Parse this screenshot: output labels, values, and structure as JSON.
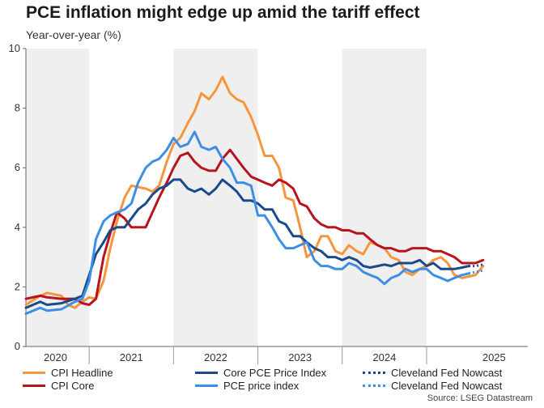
{
  "chart_data": {
    "type": "line",
    "title": "PCE inflation might edge up amid the tariff effect",
    "ylabel": "Year-over-year (%)",
    "source": "Source: LSEG Datastream",
    "ylim": [
      0,
      10
    ],
    "yticks": [
      "0",
      "2",
      "4",
      "6",
      "8",
      "10"
    ],
    "x_start": 2019.75,
    "x_end": 2025.7,
    "xtick_labels": [
      {
        "label": "2020",
        "center": 2020.1
      },
      {
        "label": "2021",
        "center": 2021.0
      },
      {
        "label": "2022",
        "center": 2022.0
      },
      {
        "label": "2023",
        "center": 2023.0
      },
      {
        "label": "2024",
        "center": 2024.0
      },
      {
        "label": "2025",
        "center": 2025.3
      }
    ],
    "year_boundaries": [
      2020.5,
      2021.5,
      2022.5,
      2023.5,
      2024.5
    ],
    "shaded_years": [
      [
        2019.75,
        2020.5
      ],
      [
        2021.5,
        2022.5
      ],
      [
        2023.5,
        2024.5
      ]
    ],
    "series": [
      {
        "name": "CPI Headline",
        "color": "#f5963c",
        "style": "solid",
        "values": [
          [
            2019.75,
            1.4
          ],
          [
            2019.92,
            1.7
          ],
          [
            2020.0,
            1.8
          ],
          [
            2020.17,
            1.7
          ],
          [
            2020.25,
            1.4
          ],
          [
            2020.33,
            1.3
          ],
          [
            2020.42,
            1.5
          ],
          [
            2020.5,
            1.65
          ],
          [
            2020.58,
            1.6
          ],
          [
            2020.67,
            2.2
          ],
          [
            2020.75,
            3.3
          ],
          [
            2020.83,
            4.2
          ],
          [
            2020.92,
            5.0
          ],
          [
            2021.0,
            5.4
          ],
          [
            2021.08,
            5.35
          ],
          [
            2021.17,
            5.3
          ],
          [
            2021.25,
            5.2
          ],
          [
            2021.33,
            5.4
          ],
          [
            2021.42,
            6.2
          ],
          [
            2021.5,
            6.8
          ],
          [
            2021.58,
            7.0
          ],
          [
            2021.67,
            7.5
          ],
          [
            2021.75,
            7.9
          ],
          [
            2021.83,
            8.5
          ],
          [
            2021.92,
            8.3
          ],
          [
            2022.0,
            8.6
          ],
          [
            2022.08,
            9.05
          ],
          [
            2022.17,
            8.5
          ],
          [
            2022.25,
            8.3
          ],
          [
            2022.33,
            8.2
          ],
          [
            2022.42,
            7.7
          ],
          [
            2022.5,
            7.1
          ],
          [
            2022.58,
            6.4
          ],
          [
            2022.67,
            6.4
          ],
          [
            2022.75,
            6.0
          ],
          [
            2022.83,
            5.0
          ],
          [
            2022.92,
            4.9
          ],
          [
            2023.0,
            4.0
          ],
          [
            2023.08,
            3.0
          ],
          [
            2023.17,
            3.2
          ],
          [
            2023.25,
            3.7
          ],
          [
            2023.33,
            3.7
          ],
          [
            2023.42,
            3.2
          ],
          [
            2023.5,
            3.1
          ],
          [
            2023.58,
            3.4
          ],
          [
            2023.67,
            3.2
          ],
          [
            2023.75,
            3.1
          ],
          [
            2023.83,
            3.5
          ],
          [
            2023.92,
            3.4
          ],
          [
            2024.0,
            3.3
          ],
          [
            2024.08,
            3.0
          ],
          [
            2024.17,
            2.9
          ],
          [
            2024.25,
            2.5
          ],
          [
            2024.33,
            2.4
          ],
          [
            2024.42,
            2.6
          ],
          [
            2024.5,
            2.7
          ],
          [
            2024.58,
            2.9
          ],
          [
            2024.67,
            3.0
          ],
          [
            2024.75,
            2.8
          ],
          [
            2024.83,
            2.4
          ],
          [
            2024.92,
            2.3
          ],
          [
            2025.0,
            2.35
          ],
          [
            2025.08,
            2.4
          ],
          [
            2025.17,
            2.7
          ]
        ]
      },
      {
        "name": "CPI Core",
        "color": "#b8141e",
        "style": "solid",
        "values": [
          [
            2019.75,
            1.6
          ],
          [
            2019.92,
            1.7
          ],
          [
            2020.0,
            1.65
          ],
          [
            2020.17,
            1.6
          ],
          [
            2020.33,
            1.6
          ],
          [
            2020.42,
            1.45
          ],
          [
            2020.5,
            1.4
          ],
          [
            2020.58,
            1.6
          ],
          [
            2020.67,
            3.0
          ],
          [
            2020.75,
            3.8
          ],
          [
            2020.83,
            4.5
          ],
          [
            2020.92,
            4.3
          ],
          [
            2021.0,
            4.0
          ],
          [
            2021.08,
            4.0
          ],
          [
            2021.17,
            4.0
          ],
          [
            2021.25,
            4.5
          ],
          [
            2021.33,
            5.0
          ],
          [
            2021.42,
            5.5
          ],
          [
            2021.5,
            6.0
          ],
          [
            2021.58,
            6.4
          ],
          [
            2021.67,
            6.5
          ],
          [
            2021.75,
            6.2
          ],
          [
            2021.83,
            6.0
          ],
          [
            2021.92,
            5.9
          ],
          [
            2022.0,
            5.9
          ],
          [
            2022.08,
            6.3
          ],
          [
            2022.17,
            6.6
          ],
          [
            2022.25,
            6.3
          ],
          [
            2022.33,
            6.0
          ],
          [
            2022.42,
            5.7
          ],
          [
            2022.5,
            5.6
          ],
          [
            2022.58,
            5.5
          ],
          [
            2022.67,
            5.4
          ],
          [
            2022.75,
            5.6
          ],
          [
            2022.83,
            5.5
          ],
          [
            2022.92,
            5.3
          ],
          [
            2023.0,
            4.8
          ],
          [
            2023.08,
            4.7
          ],
          [
            2023.17,
            4.3
          ],
          [
            2023.25,
            4.1
          ],
          [
            2023.33,
            4.0
          ],
          [
            2023.42,
            4.0
          ],
          [
            2023.5,
            3.9
          ],
          [
            2023.58,
            3.9
          ],
          [
            2023.67,
            3.8
          ],
          [
            2023.75,
            3.8
          ],
          [
            2023.83,
            3.6
          ],
          [
            2023.92,
            3.4
          ],
          [
            2024.0,
            3.3
          ],
          [
            2024.08,
            3.3
          ],
          [
            2024.17,
            3.2
          ],
          [
            2024.25,
            3.2
          ],
          [
            2024.33,
            3.3
          ],
          [
            2024.42,
            3.3
          ],
          [
            2024.5,
            3.3
          ],
          [
            2024.58,
            3.2
          ],
          [
            2024.67,
            3.2
          ],
          [
            2024.75,
            3.1
          ],
          [
            2024.83,
            3.0
          ],
          [
            2024.92,
            2.8
          ],
          [
            2025.0,
            2.8
          ],
          [
            2025.08,
            2.8
          ],
          [
            2025.17,
            2.9
          ]
        ]
      },
      {
        "name": "Core PCE Price Index",
        "color": "#1a4a8c",
        "style": "solid",
        "values": [
          [
            2019.75,
            1.3
          ],
          [
            2019.92,
            1.5
          ],
          [
            2020.0,
            1.4
          ],
          [
            2020.17,
            1.45
          ],
          [
            2020.33,
            1.6
          ],
          [
            2020.42,
            1.7
          ],
          [
            2020.5,
            2.4
          ],
          [
            2020.58,
            3.1
          ],
          [
            2020.67,
            3.5
          ],
          [
            2020.75,
            3.9
          ],
          [
            2020.83,
            4.0
          ],
          [
            2020.92,
            4.0
          ],
          [
            2021.0,
            4.3
          ],
          [
            2021.08,
            4.6
          ],
          [
            2021.17,
            4.8
          ],
          [
            2021.25,
            5.1
          ],
          [
            2021.33,
            5.3
          ],
          [
            2021.42,
            5.4
          ],
          [
            2021.5,
            5.6
          ],
          [
            2021.58,
            5.6
          ],
          [
            2021.67,
            5.3
          ],
          [
            2021.75,
            5.2
          ],
          [
            2021.83,
            5.3
          ],
          [
            2021.92,
            5.1
          ],
          [
            2022.0,
            5.3
          ],
          [
            2022.08,
            5.6
          ],
          [
            2022.17,
            5.4
          ],
          [
            2022.25,
            5.2
          ],
          [
            2022.33,
            4.9
          ],
          [
            2022.42,
            4.9
          ],
          [
            2022.5,
            4.8
          ],
          [
            2022.58,
            4.6
          ],
          [
            2022.67,
            4.6
          ],
          [
            2022.75,
            4.2
          ],
          [
            2022.83,
            4.1
          ],
          [
            2022.92,
            3.7
          ],
          [
            2023.0,
            3.7
          ],
          [
            2023.08,
            3.5
          ],
          [
            2023.17,
            3.3
          ],
          [
            2023.25,
            3.2
          ],
          [
            2023.33,
            3.0
          ],
          [
            2023.42,
            3.0
          ],
          [
            2023.5,
            2.9
          ],
          [
            2023.58,
            3.0
          ],
          [
            2023.67,
            2.9
          ],
          [
            2023.75,
            2.7
          ],
          [
            2023.83,
            2.65
          ],
          [
            2023.92,
            2.7
          ],
          [
            2024.0,
            2.75
          ],
          [
            2024.08,
            2.7
          ],
          [
            2024.17,
            2.8
          ],
          [
            2024.25,
            2.8
          ],
          [
            2024.33,
            2.8
          ],
          [
            2024.42,
            2.9
          ],
          [
            2024.5,
            2.7
          ],
          [
            2024.58,
            2.8
          ],
          [
            2024.67,
            2.6
          ],
          [
            2024.75,
            2.6
          ],
          [
            2024.83,
            2.6
          ],
          [
            2024.92,
            2.65
          ],
          [
            2025.0,
            2.7
          ]
        ]
      },
      {
        "name": "PCE price index",
        "color": "#3d8ee6",
        "style": "solid",
        "values": [
          [
            2019.75,
            1.1
          ],
          [
            2019.92,
            1.3
          ],
          [
            2020.0,
            1.2
          ],
          [
            2020.17,
            1.25
          ],
          [
            2020.33,
            1.5
          ],
          [
            2020.42,
            1.6
          ],
          [
            2020.5,
            2.2
          ],
          [
            2020.58,
            3.6
          ],
          [
            2020.67,
            4.2
          ],
          [
            2020.75,
            4.4
          ],
          [
            2020.83,
            4.5
          ],
          [
            2020.92,
            4.6
          ],
          [
            2021.0,
            4.8
          ],
          [
            2021.08,
            5.5
          ],
          [
            2021.17,
            6.0
          ],
          [
            2021.25,
            6.2
          ],
          [
            2021.33,
            6.3
          ],
          [
            2021.42,
            6.6
          ],
          [
            2021.5,
            7.0
          ],
          [
            2021.58,
            6.7
          ],
          [
            2021.67,
            6.8
          ],
          [
            2021.75,
            7.2
          ],
          [
            2021.83,
            6.7
          ],
          [
            2021.92,
            6.6
          ],
          [
            2022.0,
            6.7
          ],
          [
            2022.08,
            6.3
          ],
          [
            2022.17,
            6.0
          ],
          [
            2022.25,
            5.5
          ],
          [
            2022.33,
            5.5
          ],
          [
            2022.42,
            5.4
          ],
          [
            2022.5,
            4.4
          ],
          [
            2022.58,
            4.4
          ],
          [
            2022.67,
            4.0
          ],
          [
            2022.75,
            3.6
          ],
          [
            2022.83,
            3.3
          ],
          [
            2022.92,
            3.3
          ],
          [
            2023.0,
            3.4
          ],
          [
            2023.08,
            3.5
          ],
          [
            2023.17,
            2.9
          ],
          [
            2023.25,
            2.7
          ],
          [
            2023.33,
            2.7
          ],
          [
            2023.42,
            2.6
          ],
          [
            2023.5,
            2.6
          ],
          [
            2023.58,
            2.8
          ],
          [
            2023.67,
            2.7
          ],
          [
            2023.75,
            2.5
          ],
          [
            2023.83,
            2.4
          ],
          [
            2023.92,
            2.3
          ],
          [
            2024.0,
            2.1
          ],
          [
            2024.08,
            2.3
          ],
          [
            2024.17,
            2.4
          ],
          [
            2024.25,
            2.6
          ],
          [
            2024.33,
            2.5
          ],
          [
            2024.42,
            2.6
          ],
          [
            2024.5,
            2.6
          ],
          [
            2024.58,
            2.4
          ],
          [
            2024.67,
            2.3
          ],
          [
            2024.75,
            2.2
          ],
          [
            2024.83,
            2.3
          ],
          [
            2024.92,
            2.4
          ],
          [
            2025.0,
            2.45
          ]
        ]
      },
      {
        "name": "Cleveland Fed Nowcast",
        "color": "#1a4a8c",
        "style": "dotted",
        "values": [
          [
            2025.0,
            2.7
          ],
          [
            2025.08,
            2.7
          ],
          [
            2025.17,
            2.75
          ]
        ]
      },
      {
        "name": "Cleveland Fed Nowcast",
        "color": "#3d8ee6",
        "style": "dotted",
        "values": [
          [
            2025.0,
            2.45
          ],
          [
            2025.08,
            2.5
          ],
          [
            2025.17,
            2.55
          ]
        ]
      }
    ]
  }
}
